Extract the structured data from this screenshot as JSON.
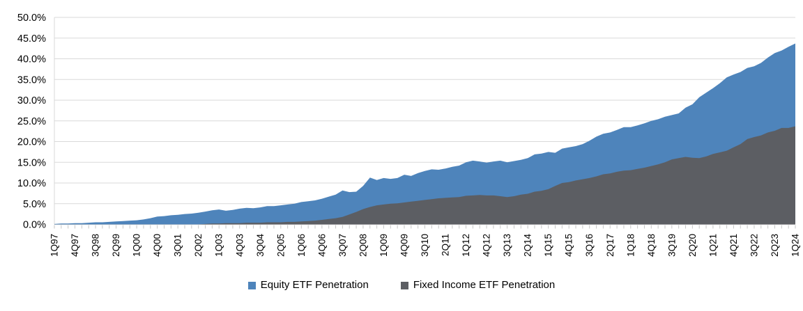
{
  "chart_data": {
    "type": "area",
    "title": "",
    "grid": true,
    "overlapping_series": true,
    "legend_position": "bottom",
    "y_axis": {
      "min": 0,
      "max": 50,
      "step": 5,
      "unit": "%",
      "tick_labels": [
        "50.0%",
        "45.0%",
        "40.0%",
        "35.0%",
        "30.0%",
        "25.0%",
        "20.0%",
        "15.0%",
        "10.0%",
        "5.0%",
        "0.0%"
      ]
    },
    "x_axis": {
      "points_count": 109,
      "tick_every_n_points": 3,
      "first_point_label": "1Q97",
      "last_point_label": "1Q24",
      "tick_labels": [
        "1Q97",
        "4Q97",
        "3Q98",
        "2Q99",
        "1Q00",
        "4Q00",
        "3Q01",
        "2Q02",
        "1Q03",
        "4Q03",
        "3Q04",
        "2Q05",
        "1Q06",
        "4Q06",
        "3Q07",
        "2Q08",
        "1Q09",
        "4Q09",
        "3Q10",
        "2Q11",
        "1Q12",
        "4Q12",
        "3Q13",
        "2Q14",
        "1Q15",
        "4Q15",
        "3Q16",
        "2Q17",
        "1Q18",
        "4Q18",
        "3Q19",
        "2Q20",
        "1Q21",
        "4Q21",
        "3Q22",
        "2Q23",
        "1Q24"
      ]
    },
    "series": [
      {
        "name": "Equity ETF Penetration",
        "color": "#4E84BB",
        "values": [
          0.1,
          0.2,
          0.2,
          0.3,
          0.3,
          0.4,
          0.5,
          0.5,
          0.6,
          0.7,
          0.8,
          0.9,
          1.0,
          1.2,
          1.5,
          1.9,
          2.0,
          2.2,
          2.3,
          2.5,
          2.6,
          2.8,
          3.1,
          3.4,
          3.6,
          3.3,
          3.5,
          3.8,
          4.0,
          3.9,
          4.1,
          4.4,
          4.4,
          4.6,
          4.8,
          5.0,
          5.4,
          5.6,
          5.8,
          6.2,
          6.7,
          7.2,
          8.2,
          7.8,
          7.9,
          9.3,
          11.3,
          10.7,
          11.2,
          11.0,
          11.2,
          12.0,
          11.7,
          12.4,
          12.9,
          13.3,
          13.2,
          13.5,
          13.9,
          14.2,
          15.0,
          15.4,
          15.2,
          14.9,
          15.2,
          15.4,
          15.0,
          15.3,
          15.6,
          16.0,
          16.9,
          17.1,
          17.5,
          17.3,
          18.3,
          18.6,
          18.9,
          19.4,
          20.2,
          21.2,
          21.9,
          22.2,
          22.8,
          23.5,
          23.5,
          23.9,
          24.4,
          25.0,
          25.4,
          26.0,
          26.4,
          26.8,
          28.2,
          29.0,
          30.7,
          31.8,
          32.9,
          34.1,
          35.5,
          36.2,
          36.8,
          37.8,
          38.2,
          39.0,
          40.3,
          41.4,
          42.0,
          42.9,
          43.7
        ]
      },
      {
        "name": "Fixed Income ETF Penetration",
        "color": "#5C5E63",
        "values": [
          0,
          0,
          0,
          0,
          0,
          0,
          0,
          0,
          0,
          0,
          0,
          0,
          0,
          0,
          0,
          0,
          0,
          0,
          0,
          0,
          0,
          0,
          0.1,
          0.2,
          0.2,
          0.3,
          0.3,
          0.3,
          0.4,
          0.4,
          0.4,
          0.5,
          0.5,
          0.5,
          0.6,
          0.6,
          0.7,
          0.8,
          0.9,
          1.1,
          1.3,
          1.5,
          1.8,
          2.4,
          3.0,
          3.7,
          4.2,
          4.6,
          4.8,
          5.0,
          5.1,
          5.3,
          5.5,
          5.7,
          5.9,
          6.1,
          6.3,
          6.4,
          6.5,
          6.6,
          6.9,
          7.0,
          7.1,
          7.0,
          7.0,
          6.8,
          6.6,
          6.8,
          7.2,
          7.4,
          7.9,
          8.1,
          8.5,
          9.3,
          10.0,
          10.2,
          10.6,
          10.9,
          11.2,
          11.6,
          12.1,
          12.3,
          12.7,
          13.0,
          13.1,
          13.4,
          13.7,
          14.1,
          14.5,
          15.0,
          15.7,
          16.0,
          16.3,
          16.1,
          16.0,
          16.4,
          17.0,
          17.4,
          17.8,
          18.6,
          19.4,
          20.6,
          21.1,
          21.5,
          22.2,
          22.6,
          23.3,
          23.3,
          23.7
        ]
      }
    ]
  },
  "colors": {
    "background": "#FFFFFF",
    "gridline": "#D9D9D9",
    "axis_line": "#BFBFBF",
    "tick_mark": "#C6C6C6",
    "label_text": "#000000"
  }
}
